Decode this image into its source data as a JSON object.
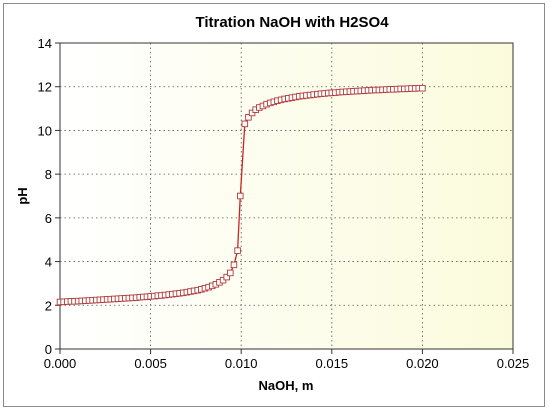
{
  "chart_data": {
    "type": "line",
    "title": "Titration NaOH with H2SO4",
    "xlabel": "NaOH, m",
    "ylabel": "pH",
    "xlim": [
      0,
      0.025
    ],
    "ylim": [
      0,
      14
    ],
    "x_ticks": [
      "0.000",
      "0.005",
      "0.010",
      "0.015",
      "0.020",
      "0.025"
    ],
    "y_ticks": [
      "0",
      "2",
      "4",
      "6",
      "8",
      "10",
      "12",
      "14"
    ],
    "grid": true,
    "marker": "square",
    "x_step": 0.0002,
    "series": [
      {
        "color": "#cc2222",
        "marker_color": "#b03a3a",
        "points": [
          [
            0.0,
            2.15
          ],
          [
            0.0002,
            2.16
          ],
          [
            0.0004,
            2.17
          ],
          [
            0.0006,
            2.18
          ],
          [
            0.0008,
            2.18
          ],
          [
            0.001,
            2.19
          ],
          [
            0.0012,
            2.2
          ],
          [
            0.0014,
            2.21
          ],
          [
            0.0016,
            2.22
          ],
          [
            0.0018,
            2.23
          ],
          [
            0.002,
            2.24
          ],
          [
            0.0022,
            2.25
          ],
          [
            0.0024,
            2.26
          ],
          [
            0.0026,
            2.27
          ],
          [
            0.0028,
            2.28
          ],
          [
            0.003,
            2.29
          ],
          [
            0.0032,
            2.3
          ],
          [
            0.0034,
            2.31
          ],
          [
            0.0036,
            2.32
          ],
          [
            0.0038,
            2.33
          ],
          [
            0.004,
            2.34
          ],
          [
            0.0042,
            2.35
          ],
          [
            0.0044,
            2.37
          ],
          [
            0.0046,
            2.38
          ],
          [
            0.0048,
            2.39
          ],
          [
            0.005,
            2.41
          ],
          [
            0.0052,
            2.42
          ],
          [
            0.0054,
            2.44
          ],
          [
            0.0056,
            2.45
          ],
          [
            0.0058,
            2.47
          ],
          [
            0.006,
            2.49
          ],
          [
            0.0062,
            2.51
          ],
          [
            0.0064,
            2.53
          ],
          [
            0.0066,
            2.55
          ],
          [
            0.0068,
            2.57
          ],
          [
            0.007,
            2.6
          ],
          [
            0.0072,
            2.63
          ],
          [
            0.0074,
            2.66
          ],
          [
            0.0076,
            2.69
          ],
          [
            0.0078,
            2.73
          ],
          [
            0.008,
            2.78
          ],
          [
            0.0082,
            2.83
          ],
          [
            0.0084,
            2.89
          ],
          [
            0.0086,
            2.96
          ],
          [
            0.0088,
            3.05
          ],
          [
            0.009,
            3.15
          ],
          [
            0.0092,
            3.29
          ],
          [
            0.0094,
            3.48
          ],
          [
            0.0096,
            3.85
          ],
          [
            0.0098,
            4.5
          ],
          [
            0.00995,
            7.0
          ],
          [
            0.0102,
            10.3
          ],
          [
            0.0104,
            10.6
          ],
          [
            0.0106,
            10.8
          ],
          [
            0.0108,
            10.95
          ],
          [
            0.011,
            11.05
          ],
          [
            0.0112,
            11.12
          ],
          [
            0.0114,
            11.2
          ],
          [
            0.0116,
            11.26
          ],
          [
            0.0118,
            11.31
          ],
          [
            0.012,
            11.36
          ],
          [
            0.0122,
            11.4
          ],
          [
            0.0124,
            11.44
          ],
          [
            0.0126,
            11.47
          ],
          [
            0.0128,
            11.5
          ],
          [
            0.013,
            11.53
          ],
          [
            0.0132,
            11.56
          ],
          [
            0.0134,
            11.58
          ],
          [
            0.0136,
            11.6
          ],
          [
            0.0138,
            11.62
          ],
          [
            0.014,
            11.64
          ],
          [
            0.0142,
            11.66
          ],
          [
            0.0144,
            11.68
          ],
          [
            0.0146,
            11.69
          ],
          [
            0.0148,
            11.71
          ],
          [
            0.015,
            11.72
          ],
          [
            0.0152,
            11.73
          ],
          [
            0.0154,
            11.75
          ],
          [
            0.0156,
            11.76
          ],
          [
            0.0158,
            11.77
          ],
          [
            0.016,
            11.78
          ],
          [
            0.0162,
            11.79
          ],
          [
            0.0164,
            11.8
          ],
          [
            0.0166,
            11.81
          ],
          [
            0.0168,
            11.82
          ],
          [
            0.017,
            11.83
          ],
          [
            0.0172,
            11.84
          ],
          [
            0.0174,
            11.85
          ],
          [
            0.0176,
            11.85
          ],
          [
            0.0178,
            11.86
          ],
          [
            0.018,
            11.87
          ],
          [
            0.0182,
            11.88
          ],
          [
            0.0184,
            11.88
          ],
          [
            0.0186,
            11.89
          ],
          [
            0.0188,
            11.9
          ],
          [
            0.019,
            11.9
          ],
          [
            0.0192,
            11.91
          ],
          [
            0.0194,
            11.92
          ],
          [
            0.0196,
            11.92
          ],
          [
            0.0198,
            11.93
          ],
          [
            0.02,
            11.93
          ]
        ]
      }
    ]
  },
  "colors": {
    "plot_bg_left": "#ffffff",
    "plot_bg_right": "#fbfbdc"
  }
}
